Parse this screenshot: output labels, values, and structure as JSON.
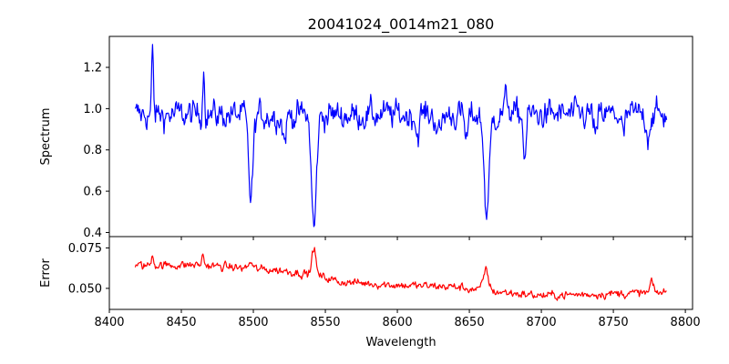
{
  "chart_data": [
    {
      "type": "line",
      "title": "20041024_0014m21_080",
      "xlabel": "",
      "ylabel": "Spectrum",
      "xlim": [
        8400,
        8805
      ],
      "ylim": [
        0.38,
        1.35
      ],
      "xticks": [
        8400,
        8450,
        8500,
        8550,
        8600,
        8650,
        8700,
        8750,
        8800
      ],
      "yticks": [
        0.4,
        0.6,
        0.8,
        1.0,
        1.2
      ],
      "ytick_labels": [
        "0.4",
        "0.6",
        "0.8",
        "1.0",
        "1.2"
      ],
      "x_range": [
        8418,
        8787
      ],
      "series": [
        {
          "color": "#0000ff",
          "continuum": 0.97,
          "noise": 0.065,
          "features": [
            {
              "center": 8498.2,
              "depth": 0.4,
              "width": 1.6
            },
            {
              "center": 8542.1,
              "depth": 0.55,
              "width": 1.7
            },
            {
              "center": 8662.1,
              "depth": 0.48,
              "width": 1.8
            },
            {
              "center": 8430.0,
              "depth": -0.3,
              "width": 0.6
            },
            {
              "center": 8465.5,
              "depth": -0.22,
              "width": 0.7
            },
            {
              "center": 8688.5,
              "depth": 0.2,
              "width": 1.0
            },
            {
              "center": 8521.5,
              "depth": 0.12,
              "width": 1.2
            },
            {
              "center": 8629.0,
              "depth": 0.1,
              "width": 1.5
            },
            {
              "center": 8648.0,
              "depth": 0.12,
              "width": 1.2
            },
            {
              "center": 8614.0,
              "depth": 0.1,
              "width": 1.0
            },
            {
              "center": 8738.0,
              "depth": 0.12,
              "width": 1.0
            },
            {
              "center": 8757.0,
              "depth": 0.1,
              "width": 1.2
            },
            {
              "center": 8774.0,
              "depth": 0.1,
              "width": 1.0
            },
            {
              "center": 8676.0,
              "depth": -0.08,
              "width": 1.5
            }
          ]
        }
      ]
    },
    {
      "type": "line",
      "title": "",
      "xlabel": "Wavelength",
      "ylabel": "Error",
      "xlim": [
        8400,
        8805
      ],
      "ylim": [
        0.037,
        0.082
      ],
      "xticks": [
        8400,
        8450,
        8500,
        8550,
        8600,
        8650,
        8700,
        8750,
        8800
      ],
      "xtick_labels": [
        "8400",
        "8450",
        "8500",
        "8550",
        "8600",
        "8650",
        "8700",
        "8750",
        "8800"
      ],
      "yticks": [
        0.05,
        0.075
      ],
      "ytick_labels": [
        "0.050",
        "0.075"
      ],
      "x_range": [
        8418,
        8787
      ],
      "series": [
        {
          "color": "#ff0000",
          "trend": [
            [
              8418,
              0.064
            ],
            [
              8460,
              0.0645
            ],
            [
              8520,
              0.061
            ],
            [
              8545,
              0.058
            ],
            [
              8560,
              0.054
            ],
            [
              8600,
              0.052
            ],
            [
              8640,
              0.051
            ],
            [
              8660,
              0.0485
            ],
            [
              8700,
              0.0455
            ],
            [
              8740,
              0.0465
            ],
            [
              8787,
              0.0475
            ]
          ],
          "noise": 0.0028,
          "features": [
            {
              "center": 8542.0,
              "height": 0.017,
              "width": 1.3
            },
            {
              "center": 8661.5,
              "height": 0.013,
              "width": 1.8
            },
            {
              "center": 8776.5,
              "height": 0.008,
              "width": 0.9
            },
            {
              "center": 8430.0,
              "height": 0.007,
              "width": 0.8
            },
            {
              "center": 8498.0,
              "height": 0.004,
              "width": 1.2
            },
            {
              "center": 8465.0,
              "height": 0.006,
              "width": 0.8
            }
          ]
        }
      ]
    }
  ]
}
